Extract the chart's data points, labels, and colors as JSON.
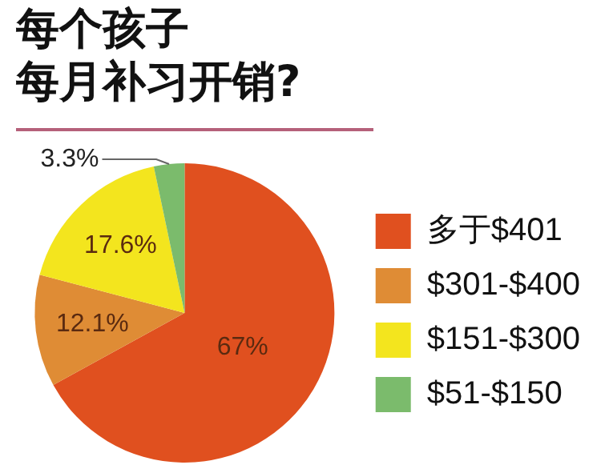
{
  "chart_data": {
    "type": "pie",
    "title": "每个孩子每月补习开销?",
    "categories": [
      "多于$401",
      "$301-$400",
      "$151-$300",
      "$51-$150"
    ],
    "values": [
      67,
      12.1,
      17.6,
      3.3
    ],
    "colors": [
      "#e0501f",
      "#df8c35",
      "#f3e51e",
      "#7bbb6c"
    ],
    "value_labels": [
      "67%",
      "12.1%",
      "17.6%",
      "3.3%"
    ],
    "legend": "right"
  }
}
